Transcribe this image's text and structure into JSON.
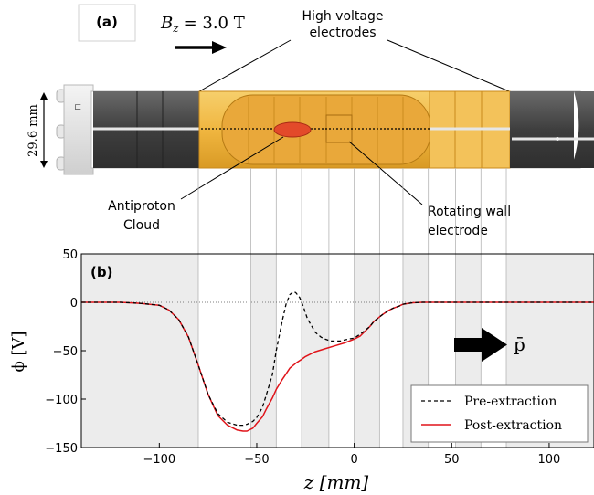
{
  "panel_a": {
    "label": "(a)",
    "field_label": "B_z = 3.0 T",
    "field_symbol": "B",
    "field_subscript": "z",
    "field_value": "= 3.0 T",
    "electrodes_label": [
      "High voltage",
      "electrodes"
    ],
    "cloud_label": [
      "Antiproton",
      "Cloud"
    ],
    "rotating_label": [
      "Rotating wall",
      "electrode"
    ],
    "scale_label": "29.6 mm"
  },
  "colors": {
    "gold": "#f0b640",
    "gold_dark": "#c98a1c",
    "dark_electrode": "#4a4a4a",
    "cloud": "#e34a2a",
    "pre_extraction": "#000000",
    "post_extraction": "#e0141a",
    "band": "#ececec"
  },
  "chart_data": {
    "type": "line",
    "panel_label": "(b)",
    "xlabel": "z [mm]",
    "ylabel": "ϕ [V]",
    "xlim": [
      -140,
      123
    ],
    "ylim": [
      -150,
      50
    ],
    "x_ticks": [
      -100,
      -50,
      0,
      50,
      100
    ],
    "y_ticks": [
      50,
      0,
      -50,
      -100,
      -150
    ],
    "grid": false,
    "legend_position": "lower-right",
    "arrow_label": "p̄",
    "electrode_boundaries": [
      -80,
      -53,
      -40,
      -27,
      -13,
      0,
      13,
      25,
      38,
      52,
      65,
      78
    ],
    "shaded_bands": [
      [
        -140,
        -80
      ],
      [
        -53,
        -40
      ],
      [
        -27,
        -13
      ],
      [
        0,
        13
      ],
      [
        25,
        38
      ],
      [
        52,
        65
      ],
      [
        78,
        123
      ]
    ],
    "series": [
      {
        "name": "Pre-extraction",
        "style": "dashed",
        "x": [
          -140,
          -120,
          -110,
          -100,
          -95,
          -90,
          -85,
          -80,
          -75,
          -70,
          -65,
          -60,
          -57,
          -55,
          -52,
          -50,
          -47,
          -45,
          -42,
          -40,
          -37,
          -35,
          -33,
          -31,
          -30,
          -28,
          -26,
          -24,
          -22,
          -20,
          -17,
          -15,
          -12,
          -10,
          -7,
          -5,
          -3,
          0,
          3,
          5,
          8,
          10,
          13,
          15,
          18,
          20,
          23,
          25,
          28,
          30,
          35,
          40,
          50,
          60,
          80,
          123
        ],
        "y": [
          0,
          0,
          -1,
          -3,
          -8,
          -18,
          -36,
          -65,
          -95,
          -115,
          -124,
          -127,
          -127,
          -126,
          -123,
          -119,
          -108,
          -95,
          -75,
          -50,
          -20,
          -2,
          8,
          11,
          10,
          5,
          -5,
          -17,
          -24,
          -31,
          -36,
          -38,
          -40,
          -40,
          -40,
          -39,
          -38,
          -37,
          -33,
          -30,
          -25,
          -20,
          -15,
          -12,
          -8,
          -6,
          -4,
          -2,
          -1,
          -0.5,
          0,
          0,
          0,
          0,
          0,
          0
        ]
      },
      {
        "name": "Post-extraction",
        "style": "solid",
        "x": [
          -140,
          -120,
          -110,
          -100,
          -95,
          -90,
          -85,
          -80,
          -75,
          -70,
          -65,
          -60,
          -57,
          -55,
          -52,
          -50,
          -47,
          -45,
          -42,
          -40,
          -37,
          -35,
          -33,
          -30,
          -27,
          -25,
          -20,
          -15,
          -10,
          -5,
          0,
          3,
          5,
          8,
          10,
          13,
          15,
          18,
          20,
          23,
          25,
          28,
          30,
          35,
          40,
          50,
          60,
          80,
          123
        ],
        "y": [
          0,
          0,
          -1,
          -3,
          -8,
          -18,
          -36,
          -65,
          -95,
          -117,
          -127,
          -132,
          -133,
          -133,
          -130,
          -125,
          -118,
          -110,
          -99,
          -90,
          -80,
          -74,
          -68,
          -63,
          -59,
          -56,
          -51,
          -48,
          -45,
          -42,
          -38,
          -35,
          -31,
          -25,
          -20,
          -15,
          -12,
          -8,
          -6,
          -4,
          -2,
          -1,
          -0.5,
          0,
          0,
          0,
          0,
          0,
          0
        ]
      }
    ]
  }
}
